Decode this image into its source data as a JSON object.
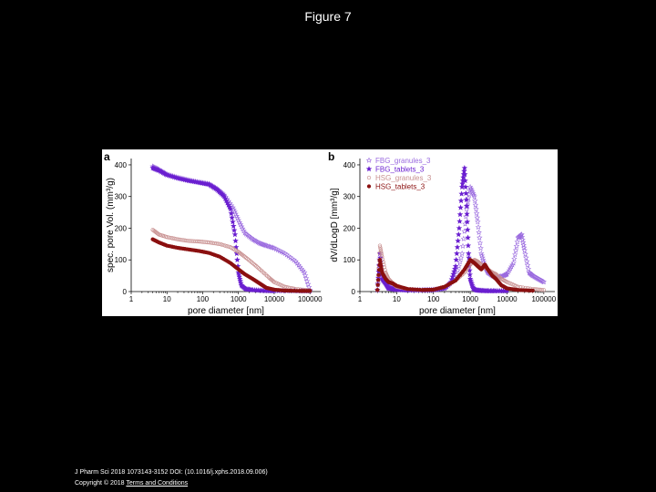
{
  "figure_title": "Figure 7",
  "footer": {
    "citation": "J Pharm Sci 2018 1073143-3152 DOI: (10.1016/j.xphs.2018.09.006)",
    "copyright": "Copyright © 2018",
    "terms_link": "Terms and Conditions"
  },
  "colors": {
    "FBG_granules_3": "#9a6adf",
    "FBG_tablets_3": "#6a1fd0",
    "HSG_granules_3": "#c89090",
    "HSG_tablets_3": "#8b1010"
  },
  "chart_data": [
    {
      "type": "scatter",
      "panel": "a",
      "xlabel": "pore diameter [nm]",
      "ylabel": "spec. pore Vol. (mm³/g)",
      "xscale": "log",
      "xlim": [
        1,
        200000
      ],
      "ylim": [
        0,
        420
      ],
      "xticks": [
        1,
        10,
        100,
        1000,
        10000,
        100000
      ],
      "xtick_labels": [
        "1",
        "10",
        "100",
        "1000",
        "10000",
        "100000"
      ],
      "yticks": [
        0,
        100,
        200,
        300,
        400
      ],
      "ytick_labels": [
        "0",
        "100",
        "200",
        "300",
        "400"
      ],
      "series": [
        {
          "key": "FBG_granules_3",
          "x": [
            4,
            6,
            10,
            20,
            40,
            80,
            150,
            250,
            400,
            700,
            1000,
            1500,
            2500,
            4000,
            6000,
            10000,
            20000,
            40000,
            70000,
            100000
          ],
          "y": [
            395,
            385,
            370,
            360,
            352,
            345,
            340,
            325,
            305,
            265,
            225,
            185,
            165,
            152,
            145,
            137,
            120,
            95,
            60,
            5
          ]
        },
        {
          "key": "FBG_tablets_3",
          "x": [
            4,
            6,
            10,
            20,
            40,
            80,
            150,
            250,
            400,
            600,
            800,
            1000,
            1200,
            1600,
            2500,
            5000,
            10000,
            50000,
            100000
          ],
          "y": [
            390,
            382,
            368,
            358,
            350,
            344,
            338,
            322,
            300,
            260,
            180,
            60,
            20,
            8,
            5,
            3,
            2,
            2,
            2
          ]
        },
        {
          "key": "HSG_granules_3",
          "x": [
            4,
            6,
            10,
            20,
            40,
            80,
            150,
            300,
            600,
            1000,
            1500,
            2500,
            4000,
            7000,
            10000,
            20000,
            40000,
            100000
          ],
          "y": [
            195,
            180,
            172,
            165,
            160,
            158,
            155,
            150,
            140,
            125,
            110,
            90,
            70,
            45,
            30,
            15,
            8,
            4
          ]
        },
        {
          "key": "HSG_tablets_3",
          "x": [
            4,
            6,
            10,
            20,
            40,
            80,
            150,
            300,
            600,
            1000,
            1500,
            2500,
            4000,
            6000,
            10000,
            20000,
            50000,
            100000
          ],
          "y": [
            165,
            155,
            145,
            138,
            133,
            128,
            122,
            110,
            90,
            70,
            55,
            40,
            25,
            12,
            6,
            3,
            2,
            2
          ]
        }
      ]
    },
    {
      "type": "scatter",
      "panel": "b",
      "xlabel": "pore diameter [nm]",
      "ylabel": "dV/dLogD [mm³/g]",
      "xscale": "log",
      "xlim": [
        1,
        200000
      ],
      "ylim": [
        0,
        420
      ],
      "xticks": [
        1,
        10,
        100,
        1000,
        10000,
        100000
      ],
      "xtick_labels": [
        "1",
        "10",
        "100",
        "1000",
        "10000",
        "100000"
      ],
      "yticks": [
        0,
        100,
        200,
        300,
        400
      ],
      "ytick_labels": [
        "0",
        "100",
        "200",
        "300",
        "400"
      ],
      "legend_position": "top-left",
      "series": [
        {
          "key": "FBG_granules_3",
          "x": [
            3,
            3.5,
            4,
            5,
            6,
            8,
            10,
            20,
            50,
            100,
            200,
            400,
            600,
            800,
            1000,
            1300,
            1600,
            2000,
            2500,
            3000,
            4000,
            5000,
            8000,
            10000,
            15000,
            20000,
            25000,
            30000,
            40000,
            50000,
            70000,
            100000
          ],
          "y": [
            5,
            100,
            55,
            30,
            15,
            10,
            8,
            5,
            5,
            6,
            10,
            40,
            120,
            260,
            330,
            300,
            220,
            120,
            80,
            60,
            50,
            45,
            50,
            55,
            90,
            170,
            180,
            130,
            60,
            50,
            40,
            30
          ]
        },
        {
          "key": "FBG_tablets_3",
          "x": [
            3,
            3.5,
            4,
            5,
            6,
            8,
            10,
            20,
            50,
            100,
            200,
            300,
            400,
            500,
            600,
            700,
            800,
            900,
            1000,
            1200,
            1500,
            2000,
            3000,
            5000,
            10000
          ],
          "y": [
            5,
            120,
            40,
            25,
            10,
            8,
            6,
            4,
            4,
            5,
            10,
            30,
            80,
            200,
            330,
            390,
            270,
            120,
            40,
            10,
            4,
            3,
            2,
            2,
            2
          ]
        },
        {
          "key": "HSG_granules_3",
          "x": [
            3,
            3.5,
            4,
            5,
            6,
            8,
            10,
            20,
            50,
            100,
            200,
            400,
            700,
            1000,
            1300,
            1600,
            2000,
            3000,
            4000,
            5000,
            7000,
            10000,
            20000,
            50000,
            100000
          ],
          "y": [
            5,
            145,
            110,
            60,
            40,
            25,
            15,
            8,
            5,
            6,
            15,
            35,
            60,
            85,
            100,
            95,
            85,
            70,
            60,
            55,
            40,
            30,
            15,
            8,
            5
          ]
        },
        {
          "key": "HSG_tablets_3",
          "x": [
            3,
            3.5,
            4,
            5,
            6,
            8,
            10,
            20,
            50,
            100,
            200,
            400,
            700,
            1000,
            1300,
            1600,
            2000,
            2500,
            3000,
            4000,
            5000,
            7000,
            10000,
            20000,
            50000
          ],
          "y": [
            5,
            100,
            60,
            40,
            30,
            25,
            18,
            8,
            5,
            6,
            15,
            35,
            70,
            100,
            90,
            80,
            70,
            85,
            70,
            50,
            40,
            20,
            10,
            5,
            3
          ]
        }
      ]
    }
  ]
}
